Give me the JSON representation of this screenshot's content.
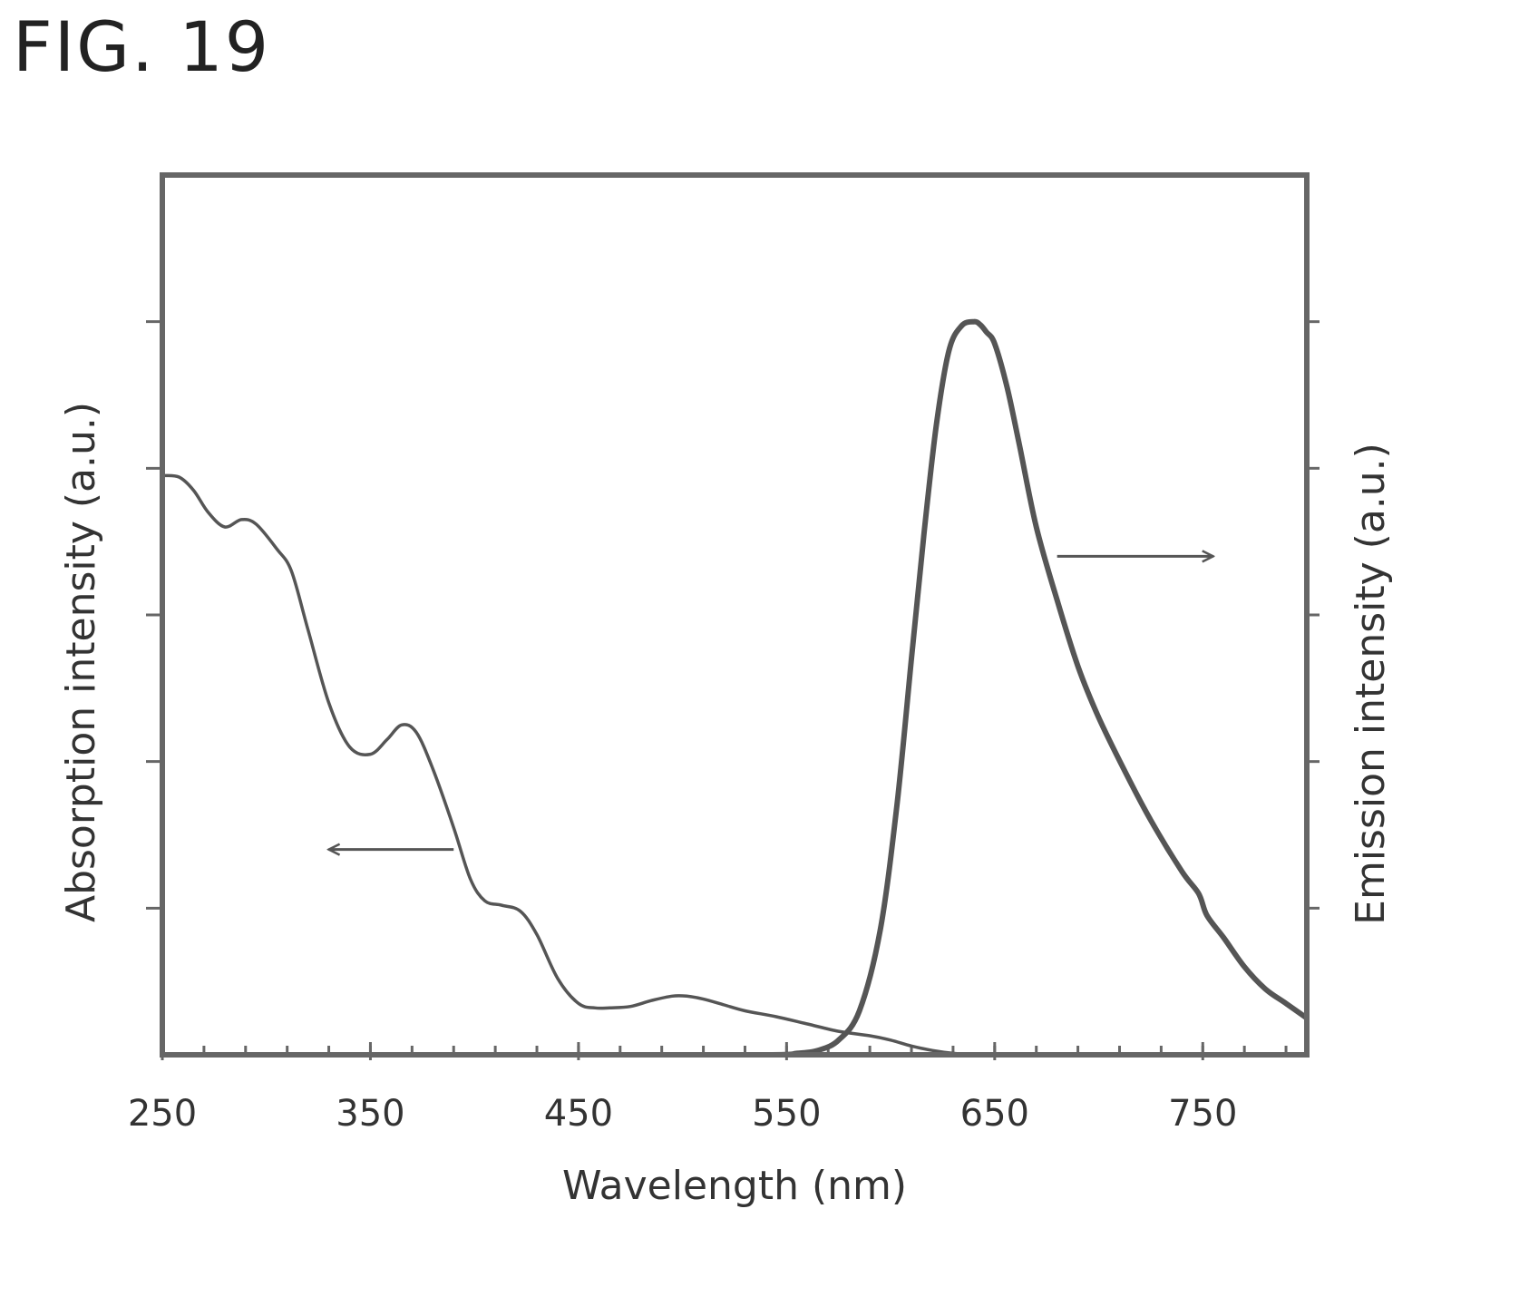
{
  "figure": {
    "label": "FIG. 19"
  },
  "chart_data": {
    "type": "line",
    "xlabel": "Wavelength (nm)",
    "ylabel_left": "Absorption intensity (a.u.)",
    "ylabel_right": "Emission intensity (a.u.)",
    "xlim": [
      250,
      800
    ],
    "ylim": [
      0,
      6
    ],
    "x_ticks": [
      250,
      350,
      450,
      550,
      650,
      750
    ],
    "x_minor_step": 20,
    "grid": false,
    "series": [
      {
        "axis": "left",
        "x": [
          250,
          258,
          265,
          272,
          280,
          288,
          295,
          305,
          312,
          320,
          330,
          340,
          350,
          358,
          365,
          372,
          380,
          390,
          398,
          405,
          413,
          422,
          430,
          440,
          450,
          458,
          465,
          475,
          485,
          495,
          502,
          510,
          520,
          530,
          545,
          560,
          575,
          590,
          600,
          610,
          620,
          630,
          640,
          650,
          660,
          670,
          680,
          690,
          700,
          750,
          800
        ],
        "y": [
          3.95,
          3.94,
          3.85,
          3.7,
          3.6,
          3.65,
          3.62,
          3.45,
          3.3,
          2.9,
          2.4,
          2.1,
          2.05,
          2.15,
          2.25,
          2.2,
          1.95,
          1.55,
          1.2,
          1.05,
          1.02,
          0.98,
          0.82,
          0.52,
          0.35,
          0.32,
          0.32,
          0.33,
          0.37,
          0.4,
          0.4,
          0.38,
          0.34,
          0.3,
          0.26,
          0.21,
          0.16,
          0.13,
          0.1,
          0.06,
          0.03,
          0.01,
          0.0,
          0.0,
          0.0,
          0.0,
          0.0,
          0.0,
          0.0,
          0.0,
          0.0
        ]
      },
      {
        "axis": "right",
        "x": [
          250,
          450,
          540,
          555,
          565,
          575,
          585,
          595,
          603,
          610,
          616,
          622,
          628,
          634,
          640,
          643,
          646,
          650,
          656,
          662,
          670,
          680,
          690,
          700,
          712,
          725,
          740,
          748,
          752,
          760,
          770,
          780,
          790,
          800
        ],
        "y": [
          0,
          0,
          0,
          0.01,
          0.03,
          0.1,
          0.3,
          0.85,
          1.7,
          2.7,
          3.55,
          4.3,
          4.8,
          4.97,
          5.0,
          4.98,
          4.93,
          4.85,
          4.55,
          4.15,
          3.6,
          3.1,
          2.65,
          2.3,
          1.95,
          1.6,
          1.25,
          1.1,
          0.95,
          0.8,
          0.6,
          0.45,
          0.35,
          0.25
        ]
      }
    ],
    "annotations": [
      {
        "type": "arrow",
        "direction": "left",
        "x_from": 390,
        "x_to": 330,
        "y": 1.4,
        "axis": "left",
        "points_to": "left axis"
      },
      {
        "type": "arrow",
        "direction": "right",
        "x_from": 680,
        "x_to": 755,
        "y": 3.4,
        "axis": "right",
        "points_to": "right axis"
      }
    ]
  }
}
